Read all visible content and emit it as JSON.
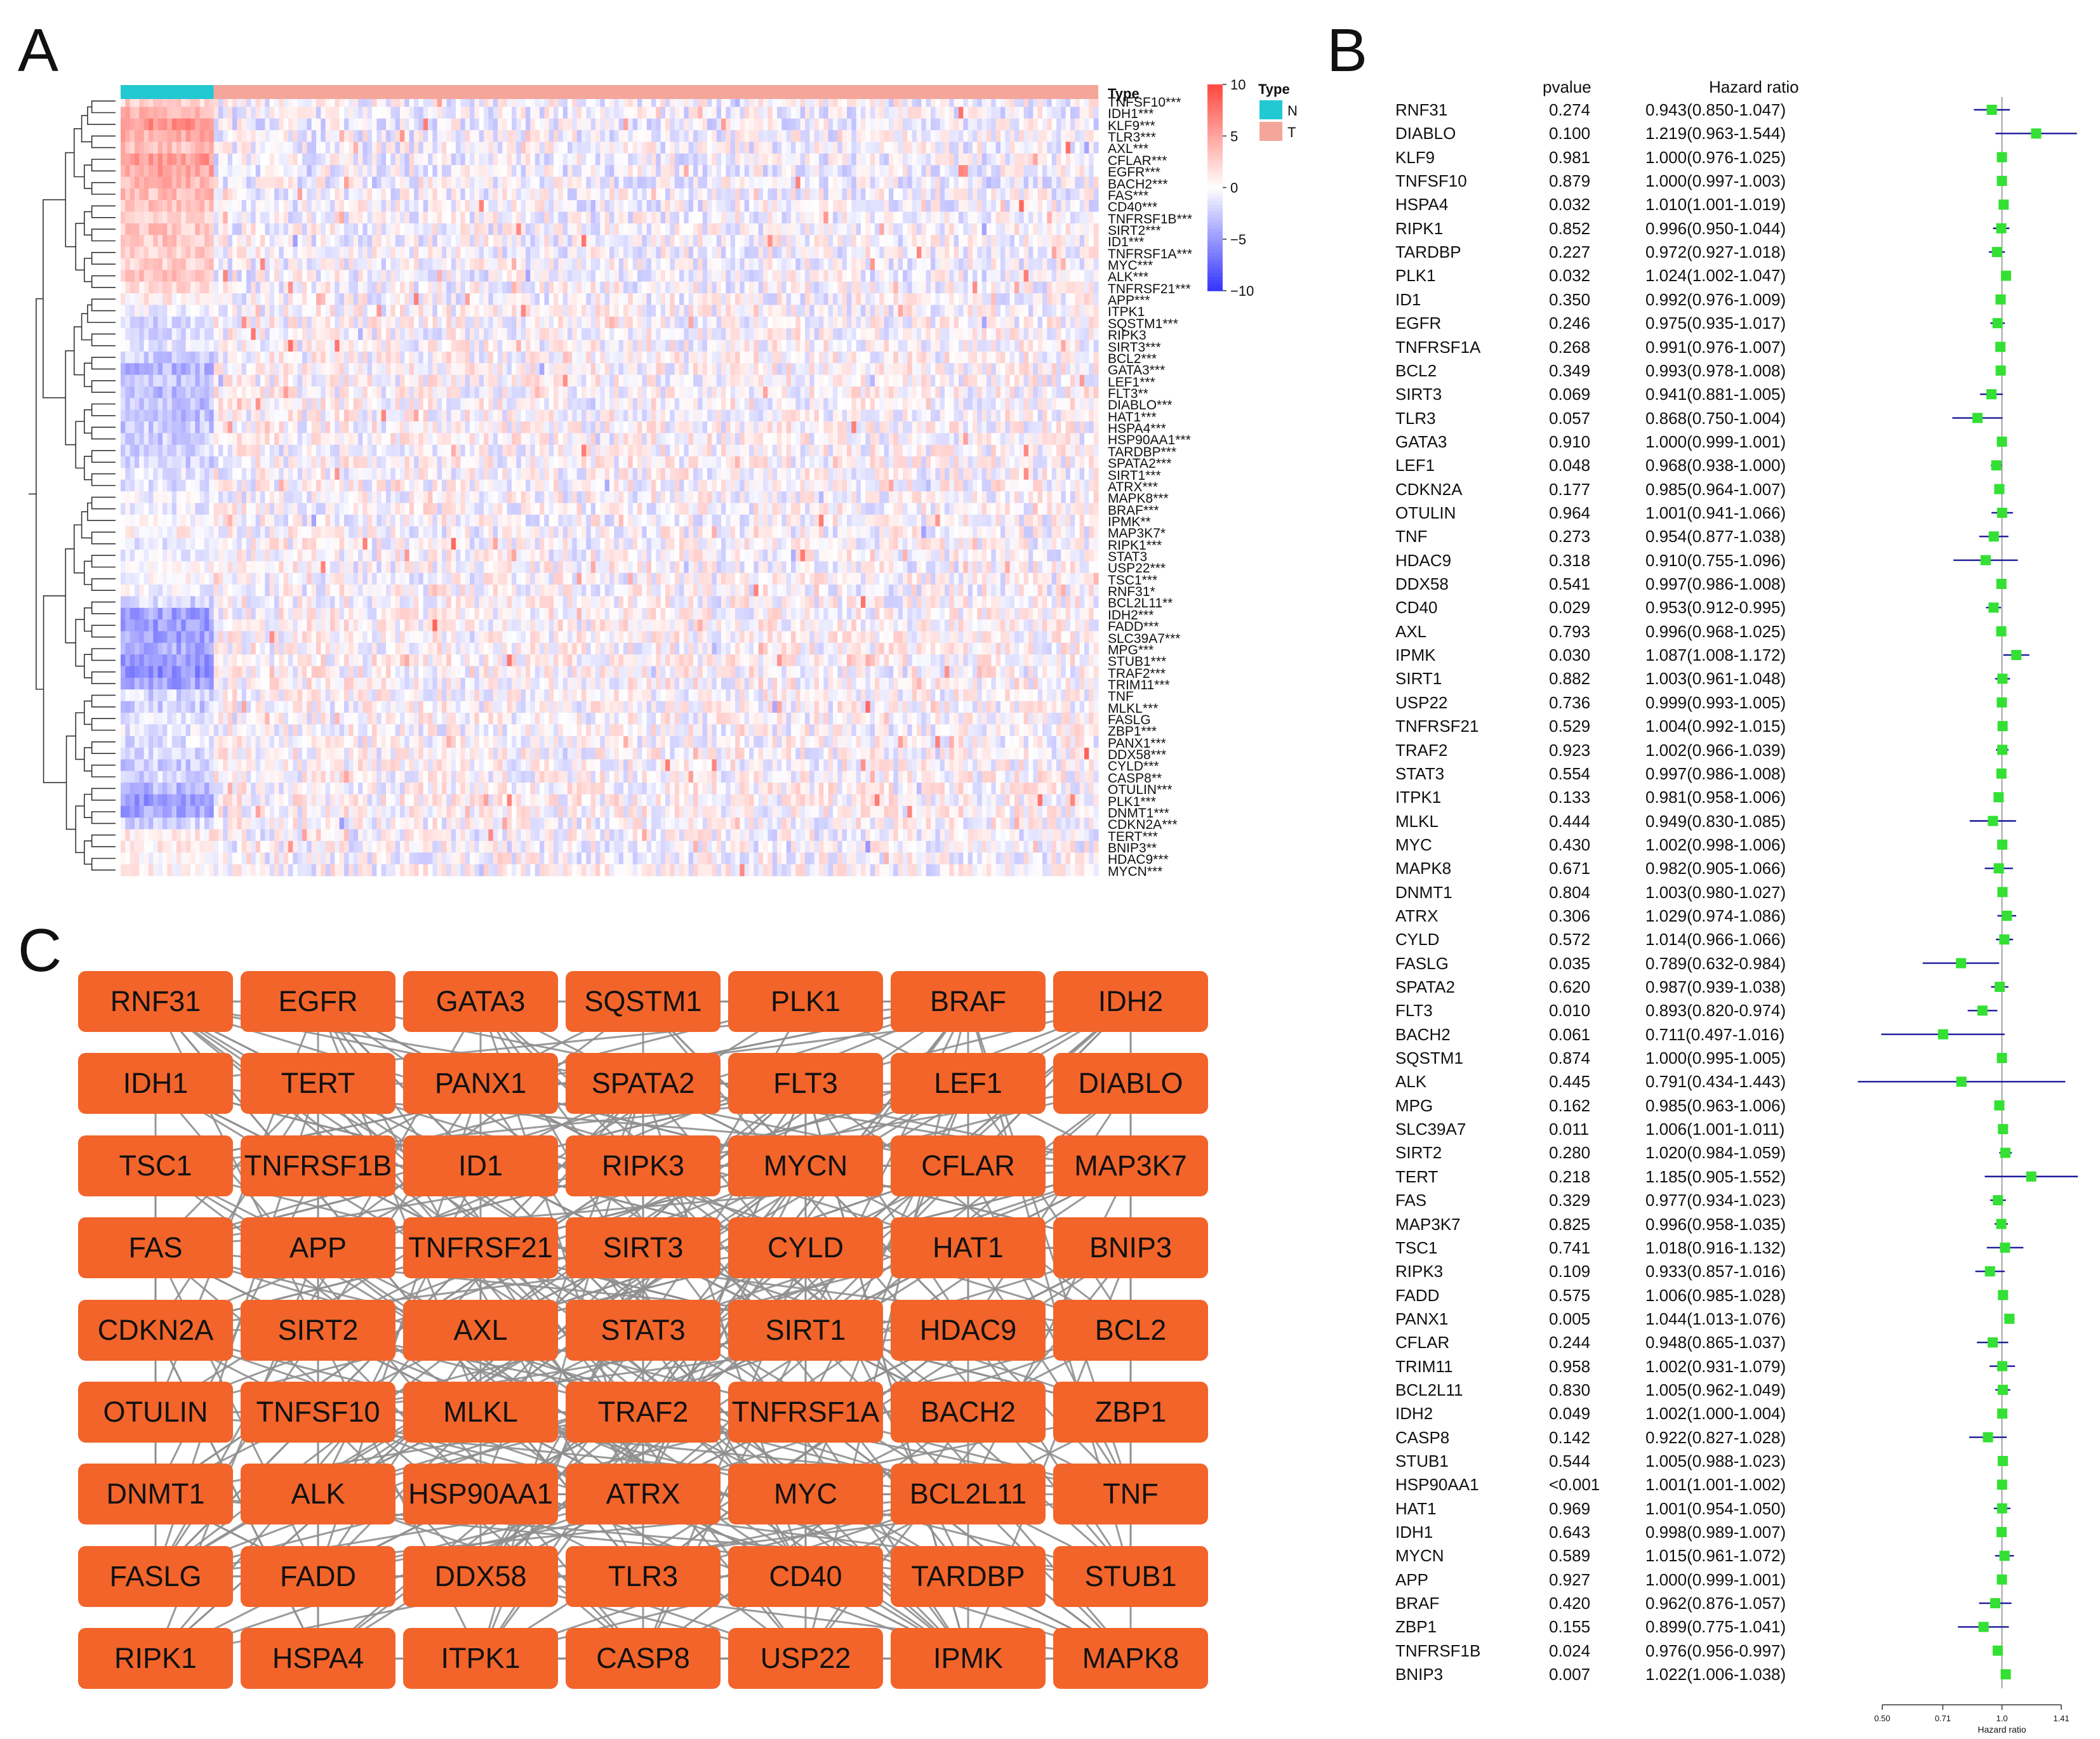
{
  "panels": {
    "a": "A",
    "b": "B",
    "c": "C"
  },
  "heatmap": {
    "type_header": "Type",
    "legend_title": "Type",
    "groups": [
      {
        "key": "N",
        "label": "N",
        "color": "#22c8d2"
      },
      {
        "key": "T",
        "label": "T",
        "color": "#f4a69a"
      }
    ],
    "scale_ticks": [
      "10",
      "5",
      "0",
      "−5",
      "−10"
    ],
    "colors": {
      "high": "#e8171d",
      "mid": "#ffffff",
      "low": "#1515ee"
    },
    "genes": [
      "TNFSF10***",
      "IDH1***",
      "KLF9***",
      "TLR3***",
      "AXL***",
      "CFLAR***",
      "EGFR***",
      "BACH2***",
      "FAS***",
      "CD40***",
      "TNFRSF1B***",
      "SIRT2***",
      "ID1***",
      "TNFRSF1A***",
      "MYC***",
      "ALK***",
      "TNFRSF21***",
      "APP***",
      "ITPK1",
      "SQSTM1***",
      "RIPK3",
      "SIRT3***",
      "BCL2***",
      "GATA3***",
      "LEF1***",
      "FLT3**",
      "DIABLO***",
      "HAT1***",
      "HSPA4***",
      "HSP90AA1***",
      "TARDBP***",
      "SPATA2***",
      "SIRT1***",
      "ATRX***",
      "MAPK8***",
      "BRAF***",
      "IPMK**",
      "MAP3K7*",
      "RIPK1***",
      "STAT3",
      "USP22***",
      "TSC1***",
      "RNF31*",
      "BCL2L11**",
      "IDH2***",
      "FADD***",
      "SLC39A7***",
      "MPG***",
      "STUB1***",
      "TRAF2***",
      "TRIM11***",
      "TNF",
      "MLKL***",
      "FASLG",
      "ZBP1***",
      "PANX1***",
      "DDX58***",
      "CYLD***",
      "CASP8**",
      "OTULIN***",
      "PLK1***",
      "DNMT1***",
      "CDKN2A***",
      "TERT***",
      "BNIP3**",
      "HDAC9***",
      "MYCN***"
    ]
  },
  "chart_data": [
    {
      "type": "heatmap",
      "title": "",
      "annotation_label": "Type",
      "groups": [
        "N",
        "T"
      ],
      "n_fraction": 0.094,
      "color_scale": {
        "min": -10,
        "max": 10,
        "ticks": [
          10,
          5,
          0,
          -5,
          -10
        ]
      },
      "row_normal_bias": [
        0.25,
        0.45,
        0.6,
        0.45,
        0.35,
        0.55,
        0.5,
        0.4,
        0.35,
        0.35,
        0.3,
        0.3,
        0.3,
        0.25,
        0.25,
        0.3,
        0.2,
        0.1,
        -0.05,
        -0.2,
        -0.15,
        -0.1,
        -0.25,
        -0.35,
        -0.3,
        -0.35,
        -0.3,
        -0.3,
        -0.25,
        -0.25,
        -0.2,
        -0.2,
        -0.1,
        -0.15,
        -0.05,
        -0.1,
        0.0,
        0.05,
        -0.1,
        -0.05,
        0.0,
        0.0,
        -0.05,
        -0.2,
        -0.45,
        -0.5,
        -0.45,
        -0.4,
        -0.5,
        -0.55,
        -0.45,
        -0.2,
        -0.25,
        -0.1,
        -0.1,
        -0.15,
        -0.2,
        -0.25,
        -0.2,
        -0.35,
        -0.5,
        -0.45,
        -0.2,
        0.1,
        0.1,
        0.05,
        0.05
      ]
    },
    {
      "type": "forest",
      "title": "",
      "pvalue_header": "pvalue",
      "hr_header": "Hazard ratio",
      "xlabel": "Hazard ratio",
      "x_ticks": [
        0.5,
        0.71,
        1.0,
        1.41
      ],
      "x_tick_labels": [
        "0.50",
        "0.71",
        "1.0",
        "1.41"
      ],
      "xlim": [
        0.5,
        1.41
      ],
      "rows": [
        {
          "gene": "RNF31",
          "p": "0.274",
          "label": "0.943(0.850-1.047)",
          "hr": 0.943,
          "lo": 0.85,
          "hi": 1.047
        },
        {
          "gene": "DIABLO",
          "p": "0.100",
          "label": "1.219(0.963-1.544)",
          "hr": 1.219,
          "lo": 0.963,
          "hi": 1.544
        },
        {
          "gene": "KLF9",
          "p": "0.981",
          "label": "1.000(0.976-1.025)",
          "hr": 1.0,
          "lo": 0.976,
          "hi": 1.025
        },
        {
          "gene": "TNFSF10",
          "p": "0.879",
          "label": "1.000(0.997-1.003)",
          "hr": 1.0,
          "lo": 0.997,
          "hi": 1.003
        },
        {
          "gene": "HSPA4",
          "p": "0.032",
          "label": "1.010(1.001-1.019)",
          "hr": 1.01,
          "lo": 1.001,
          "hi": 1.019
        },
        {
          "gene": "RIPK1",
          "p": "0.852",
          "label": "0.996(0.950-1.044)",
          "hr": 0.996,
          "lo": 0.95,
          "hi": 1.044
        },
        {
          "gene": "TARDBP",
          "p": "0.227",
          "label": "0.972(0.927-1.018)",
          "hr": 0.972,
          "lo": 0.927,
          "hi": 1.018
        },
        {
          "gene": "PLK1",
          "p": "0.032",
          "label": "1.024(1.002-1.047)",
          "hr": 1.024,
          "lo": 1.002,
          "hi": 1.047
        },
        {
          "gene": "ID1",
          "p": "0.350",
          "label": "0.992(0.976-1.009)",
          "hr": 0.992,
          "lo": 0.976,
          "hi": 1.009
        },
        {
          "gene": "EGFR",
          "p": "0.246",
          "label": "0.975(0.935-1.017)",
          "hr": 0.975,
          "lo": 0.935,
          "hi": 1.017
        },
        {
          "gene": "TNFRSF1A",
          "p": "0.268",
          "label": "0.991(0.976-1.007)",
          "hr": 0.991,
          "lo": 0.976,
          "hi": 1.007
        },
        {
          "gene": "BCL2",
          "p": "0.349",
          "label": "0.993(0.978-1.008)",
          "hr": 0.993,
          "lo": 0.978,
          "hi": 1.008
        },
        {
          "gene": "SIRT3",
          "p": "0.069",
          "label": "0.941(0.881-1.005)",
          "hr": 0.941,
          "lo": 0.881,
          "hi": 1.005
        },
        {
          "gene": "TLR3",
          "p": "0.057",
          "label": "0.868(0.750-1.004)",
          "hr": 0.868,
          "lo": 0.75,
          "hi": 1.004
        },
        {
          "gene": "GATA3",
          "p": "0.910",
          "label": "1.000(0.999-1.001)",
          "hr": 1.0,
          "lo": 0.999,
          "hi": 1.001
        },
        {
          "gene": "LEF1",
          "p": "0.048",
          "label": "0.968(0.938-1.000)",
          "hr": 0.968,
          "lo": 0.938,
          "hi": 1.0
        },
        {
          "gene": "CDKN2A",
          "p": "0.177",
          "label": "0.985(0.964-1.007)",
          "hr": 0.985,
          "lo": 0.964,
          "hi": 1.007
        },
        {
          "gene": "OTULIN",
          "p": "0.964",
          "label": "1.001(0.941-1.066)",
          "hr": 1.001,
          "lo": 0.941,
          "hi": 1.066
        },
        {
          "gene": "TNF",
          "p": "0.273",
          "label": "0.954(0.877-1.038)",
          "hr": 0.954,
          "lo": 0.877,
          "hi": 1.038
        },
        {
          "gene": "HDAC9",
          "p": "0.318",
          "label": "0.910(0.755-1.096)",
          "hr": 0.91,
          "lo": 0.755,
          "hi": 1.096
        },
        {
          "gene": "DDX58",
          "p": "0.541",
          "label": "0.997(0.986-1.008)",
          "hr": 0.997,
          "lo": 0.986,
          "hi": 1.008
        },
        {
          "gene": "CD40",
          "p": "0.029",
          "label": "0.953(0.912-0.995)",
          "hr": 0.953,
          "lo": 0.912,
          "hi": 0.995
        },
        {
          "gene": "AXL",
          "p": "0.793",
          "label": "0.996(0.968-1.025)",
          "hr": 0.996,
          "lo": 0.968,
          "hi": 1.025
        },
        {
          "gene": "IPMK",
          "p": "0.030",
          "label": "1.087(1.008-1.172)",
          "hr": 1.087,
          "lo": 1.008,
          "hi": 1.172
        },
        {
          "gene": "SIRT1",
          "p": "0.882",
          "label": "1.003(0.961-1.048)",
          "hr": 1.003,
          "lo": 0.961,
          "hi": 1.048
        },
        {
          "gene": "USP22",
          "p": "0.736",
          "label": "0.999(0.993-1.005)",
          "hr": 0.999,
          "lo": 0.993,
          "hi": 1.005
        },
        {
          "gene": "TNFRSF21",
          "p": "0.529",
          "label": "1.004(0.992-1.015)",
          "hr": 1.004,
          "lo": 0.992,
          "hi": 1.015
        },
        {
          "gene": "TRAF2",
          "p": "0.923",
          "label": "1.002(0.966-1.039)",
          "hr": 1.002,
          "lo": 0.966,
          "hi": 1.039
        },
        {
          "gene": "STAT3",
          "p": "0.554",
          "label": "0.997(0.986-1.008)",
          "hr": 0.997,
          "lo": 0.986,
          "hi": 1.008
        },
        {
          "gene": "ITPK1",
          "p": "0.133",
          "label": "0.981(0.958-1.006)",
          "hr": 0.981,
          "lo": 0.958,
          "hi": 1.006
        },
        {
          "gene": "MLKL",
          "p": "0.444",
          "label": "0.949(0.830-1.085)",
          "hr": 0.949,
          "lo": 0.83,
          "hi": 1.085
        },
        {
          "gene": "MYC",
          "p": "0.430",
          "label": "1.002(0.998-1.006)",
          "hr": 1.002,
          "lo": 0.998,
          "hi": 1.006
        },
        {
          "gene": "MAPK8",
          "p": "0.671",
          "label": "0.982(0.905-1.066)",
          "hr": 0.982,
          "lo": 0.905,
          "hi": 1.066
        },
        {
          "gene": "DNMT1",
          "p": "0.804",
          "label": "1.003(0.980-1.027)",
          "hr": 1.003,
          "lo": 0.98,
          "hi": 1.027
        },
        {
          "gene": "ATRX",
          "p": "0.306",
          "label": "1.029(0.974-1.086)",
          "hr": 1.029,
          "lo": 0.974,
          "hi": 1.086
        },
        {
          "gene": "CYLD",
          "p": "0.572",
          "label": "1.014(0.966-1.066)",
          "hr": 1.014,
          "lo": 0.966,
          "hi": 1.066
        },
        {
          "gene": "FASLG",
          "p": "0.035",
          "label": "0.789(0.632-0.984)",
          "hr": 0.789,
          "lo": 0.632,
          "hi": 0.984
        },
        {
          "gene": "SPATA2",
          "p": "0.620",
          "label": "0.987(0.939-1.038)",
          "hr": 0.987,
          "lo": 0.939,
          "hi": 1.038
        },
        {
          "gene": "FLT3",
          "p": "0.010",
          "label": "0.893(0.820-0.974)",
          "hr": 0.893,
          "lo": 0.82,
          "hi": 0.974
        },
        {
          "gene": "BACH2",
          "p": "0.061",
          "label": "0.711(0.497-1.016)",
          "hr": 0.711,
          "lo": 0.497,
          "hi": 1.016
        },
        {
          "gene": "SQSTM1",
          "p": "0.874",
          "label": "1.000(0.995-1.005)",
          "hr": 1.0,
          "lo": 0.995,
          "hi": 1.005
        },
        {
          "gene": "ALK",
          "p": "0.445",
          "label": "0.791(0.434-1.443)",
          "hr": 0.791,
          "lo": 0.434,
          "hi": 1.443
        },
        {
          "gene": "MPG",
          "p": "0.162",
          "label": "0.985(0.963-1.006)",
          "hr": 0.985,
          "lo": 0.963,
          "hi": 1.006
        },
        {
          "gene": "SLC39A7",
          "p": "0.011",
          "label": "1.006(1.001-1.011)",
          "hr": 1.006,
          "lo": 1.001,
          "hi": 1.011
        },
        {
          "gene": "SIRT2",
          "p": "0.280",
          "label": "1.020(0.984-1.059)",
          "hr": 1.02,
          "lo": 0.984,
          "hi": 1.059
        },
        {
          "gene": "TERT",
          "p": "0.218",
          "label": "1.185(0.905-1.552)",
          "hr": 1.185,
          "lo": 0.905,
          "hi": 1.552
        },
        {
          "gene": "FAS",
          "p": "0.329",
          "label": "0.977(0.934-1.023)",
          "hr": 0.977,
          "lo": 0.934,
          "hi": 1.023
        },
        {
          "gene": "MAP3K7",
          "p": "0.825",
          "label": "0.996(0.958-1.035)",
          "hr": 0.996,
          "lo": 0.958,
          "hi": 1.035
        },
        {
          "gene": "TSC1",
          "p": "0.741",
          "label": "1.018(0.916-1.132)",
          "hr": 1.018,
          "lo": 0.916,
          "hi": 1.132
        },
        {
          "gene": "RIPK3",
          "p": "0.109",
          "label": "0.933(0.857-1.016)",
          "hr": 0.933,
          "lo": 0.857,
          "hi": 1.016
        },
        {
          "gene": "FADD",
          "p": "0.575",
          "label": "1.006(0.985-1.028)",
          "hr": 1.006,
          "lo": 0.985,
          "hi": 1.028
        },
        {
          "gene": "PANX1",
          "p": "0.005",
          "label": "1.044(1.013-1.076)",
          "hr": 1.044,
          "lo": 1.013,
          "hi": 1.076
        },
        {
          "gene": "CFLAR",
          "p": "0.244",
          "label": "0.948(0.865-1.037)",
          "hr": 0.948,
          "lo": 0.865,
          "hi": 1.037
        },
        {
          "gene": "TRIM11",
          "p": "0.958",
          "label": "1.002(0.931-1.079)",
          "hr": 1.002,
          "lo": 0.931,
          "hi": 1.079
        },
        {
          "gene": "BCL2L11",
          "p": "0.830",
          "label": "1.005(0.962-1.049)",
          "hr": 1.005,
          "lo": 0.962,
          "hi": 1.049
        },
        {
          "gene": "IDH2",
          "p": "0.049",
          "label": "1.002(1.000-1.004)",
          "hr": 1.002,
          "lo": 1.0,
          "hi": 1.004
        },
        {
          "gene": "CASP8",
          "p": "0.142",
          "label": "0.922(0.827-1.028)",
          "hr": 0.922,
          "lo": 0.827,
          "hi": 1.028
        },
        {
          "gene": "STUB1",
          "p": "0.544",
          "label": "1.005(0.988-1.023)",
          "hr": 1.005,
          "lo": 0.988,
          "hi": 1.023
        },
        {
          "gene": "HSP90AA1",
          "p": "<0.001",
          "label": "1.001(1.001-1.002)",
          "hr": 1.001,
          "lo": 1.001,
          "hi": 1.002
        },
        {
          "gene": "HAT1",
          "p": "0.969",
          "label": "1.001(0.954-1.050)",
          "hr": 1.001,
          "lo": 0.954,
          "hi": 1.05
        },
        {
          "gene": "IDH1",
          "p": "0.643",
          "label": "0.998(0.989-1.007)",
          "hr": 0.998,
          "lo": 0.989,
          "hi": 1.007
        },
        {
          "gene": "MYCN",
          "p": "0.589",
          "label": "1.015(0.961-1.072)",
          "hr": 1.015,
          "lo": 0.961,
          "hi": 1.072
        },
        {
          "gene": "APP",
          "p": "0.927",
          "label": "1.000(0.999-1.001)",
          "hr": 1.0,
          "lo": 0.999,
          "hi": 1.001
        },
        {
          "gene": "BRAF",
          "p": "0.420",
          "label": "0.962(0.876-1.057)",
          "hr": 0.962,
          "lo": 0.876,
          "hi": 1.057
        },
        {
          "gene": "ZBP1",
          "p": "0.155",
          "label": "0.899(0.775-1.041)",
          "hr": 0.899,
          "lo": 0.775,
          "hi": 1.041
        },
        {
          "gene": "TNFRSF1B",
          "p": "0.024",
          "label": "0.976(0.956-0.997)",
          "hr": 0.976,
          "lo": 0.956,
          "hi": 0.997
        },
        {
          "gene": "BNIP3",
          "p": "0.007",
          "label": "1.022(1.006-1.038)",
          "hr": 1.022,
          "lo": 1.006,
          "hi": 1.038
        }
      ]
    },
    {
      "type": "network",
      "title": "",
      "node_color": "#f2642a",
      "edge_color": "#8f8f8f",
      "nodes": [
        [
          "RNF31",
          "EGFR",
          "GATA3",
          "SQSTM1",
          "PLK1",
          "BRAF",
          "IDH2"
        ],
        [
          "IDH1",
          "TERT",
          "PANX1",
          "SPATA2",
          "FLT3",
          "LEF1",
          "DIABLO"
        ],
        [
          "TSC1",
          "TNFRSF1B",
          "ID1",
          "RIPK3",
          "MYCN",
          "CFLAR",
          "MAP3K7"
        ],
        [
          "FAS",
          "APP",
          "TNFRSF21",
          "SIRT3",
          "CYLD",
          "HAT1",
          "BNIP3"
        ],
        [
          "CDKN2A",
          "SIRT2",
          "AXL",
          "STAT3",
          "SIRT1",
          "HDAC9",
          "BCL2"
        ],
        [
          "OTULIN",
          "TNFSF10",
          "MLKL",
          "TRAF2",
          "TNFRSF1A",
          "BACH2",
          "ZBP1"
        ],
        [
          "DNMT1",
          "ALK",
          "HSP90AA1",
          "ATRX",
          "MYC",
          "BCL2L11",
          "TNF"
        ],
        [
          "FASLG",
          "FADD",
          "DDX58",
          "TLR3",
          "CD40",
          "TARDBP",
          "STUB1"
        ],
        [
          "RIPK1",
          "HSPA4",
          "ITPK1",
          "CASP8",
          "USP22",
          "IPMK",
          "MAPK8"
        ]
      ]
    }
  ]
}
